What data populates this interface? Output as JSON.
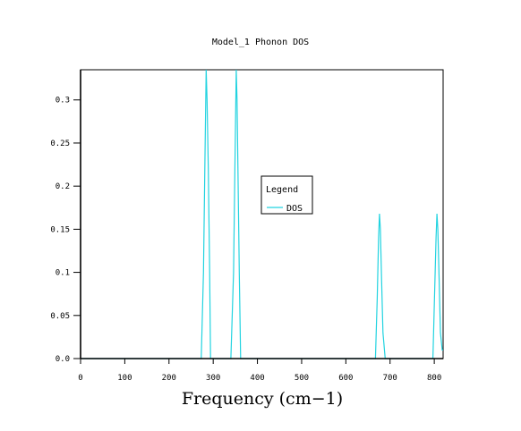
{
  "chart_data": {
    "type": "line",
    "title": "Model_1 Phonon DOS",
    "xlabel": "Frequency (cm−1)",
    "ylabel": "",
    "xlim": [
      0,
      820
    ],
    "ylim": [
      0,
      0.335
    ],
    "x_ticks": [
      0,
      100,
      200,
      300,
      400,
      500,
      600,
      700,
      800
    ],
    "x_tick_labels": [
      "0",
      "100",
      "200",
      "300",
      "400",
      "500",
      "600",
      "700",
      "800"
    ],
    "y_ticks": [
      0,
      0.05,
      0.1,
      0.15,
      0.2,
      0.25,
      0.3
    ],
    "y_tick_labels": [
      "0.0",
      "0.05",
      "0.1",
      "0.15",
      "0.2",
      "0.25",
      "0.3"
    ],
    "grid": false,
    "legend": {
      "title": "Legend",
      "placement": "center-right"
    },
    "series": [
      {
        "name": "DOS",
        "color": "#22d3e0",
        "x": [
          0,
          273,
          278,
          281,
          284,
          286,
          289,
          292,
          294,
          298,
          340,
          346,
          349,
          352,
          354,
          356,
          359,
          362,
          366,
          667,
          671,
          674,
          676,
          678,
          681,
          684,
          689,
          797,
          801,
          804,
          806,
          808,
          811,
          814,
          818,
          820
        ],
        "y": [
          0,
          0,
          0.1,
          0.22,
          0.335,
          0.3,
          0.22,
          0.1,
          0,
          0,
          0,
          0.1,
          0.22,
          0.335,
          0.3,
          0.22,
          0.1,
          0,
          0,
          0,
          0.07,
          0.14,
          0.168,
          0.15,
          0.09,
          0.03,
          0,
          0,
          0.08,
          0.14,
          0.168,
          0.15,
          0.09,
          0.03,
          0.01,
          0.01
        ]
      }
    ]
  }
}
